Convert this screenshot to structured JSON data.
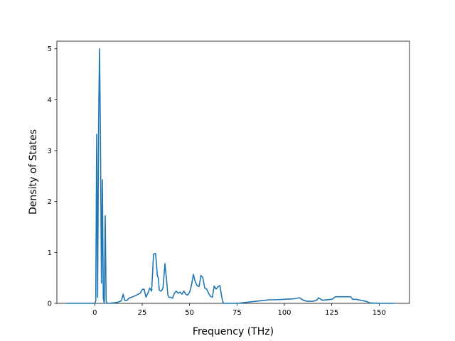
{
  "chart_data": {
    "type": "line",
    "title": "",
    "xlabel": "Frequency (THz)",
    "ylabel": "Density of States",
    "xlim": [
      -20,
      166
    ],
    "ylim": [
      0,
      5.15
    ],
    "xticks": [
      0,
      25,
      50,
      75,
      100,
      125,
      150
    ],
    "yticks": [
      0,
      1,
      2,
      3,
      4,
      5
    ],
    "grid": false,
    "legend": "none",
    "line_color": "#1f77b4",
    "series": [
      {
        "x": [
          -15,
          -5,
          0,
          0.5,
          1,
          1.5,
          2,
          2.5,
          3,
          3.5,
          4,
          4.5,
          5,
          5.5,
          6,
          6.5,
          7,
          7.5,
          8,
          9,
          10,
          12,
          14,
          15,
          15.5,
          16,
          17,
          18,
          20,
          22,
          24,
          25,
          26,
          27,
          28,
          29,
          30,
          31,
          32,
          32.5,
          33,
          33.5,
          34,
          35,
          36,
          37,
          38,
          38.5,
          39,
          40,
          41,
          42,
          43,
          44,
          45,
          46,
          47,
          48,
          49,
          50,
          51,
          52,
          53,
          54,
          55,
          56,
          57,
          58,
          59,
          60,
          61,
          62,
          63,
          64,
          65,
          66,
          67,
          67.5,
          68,
          69,
          70,
          75,
          80,
          85,
          90,
          92,
          95,
          100,
          105,
          108,
          110,
          112,
          115,
          117,
          118,
          120,
          125,
          127,
          130,
          133,
          135,
          136,
          138,
          140,
          143,
          145,
          150,
          155,
          158
        ],
        "y": [
          0,
          0,
          0,
          0.05,
          3.32,
          0.12,
          3.6,
          5.0,
          3.2,
          0.4,
          2.43,
          0.1,
          0.0,
          1.72,
          0.05,
          0,
          0,
          0,
          0,
          0.01,
          0.01,
          0.02,
          0.05,
          0.18,
          0.1,
          0.05,
          0.06,
          0.1,
          0.13,
          0.16,
          0.2,
          0.27,
          0.28,
          0.12,
          0.2,
          0.3,
          0.24,
          0.97,
          0.98,
          0.8,
          0.55,
          0.5,
          0.26,
          0.24,
          0.3,
          0.78,
          0.4,
          0.18,
          0.12,
          0.12,
          0.1,
          0.2,
          0.24,
          0.2,
          0.22,
          0.18,
          0.24,
          0.18,
          0.16,
          0.22,
          0.35,
          0.57,
          0.42,
          0.35,
          0.33,
          0.55,
          0.5,
          0.3,
          0.28,
          0.2,
          0.14,
          0.12,
          0.34,
          0.28,
          0.33,
          0.35,
          0.12,
          0.03,
          0.0,
          0.0,
          0.0,
          0.0,
          0.02,
          0.04,
          0.06,
          0.07,
          0.07,
          0.08,
          0.09,
          0.11,
          0.06,
          0.04,
          0.04,
          0.06,
          0.11,
          0.06,
          0.08,
          0.13,
          0.13,
          0.13,
          0.13,
          0.08,
          0.08,
          0.06,
          0.04,
          0.01,
          0,
          0,
          0
        ]
      }
    ]
  }
}
